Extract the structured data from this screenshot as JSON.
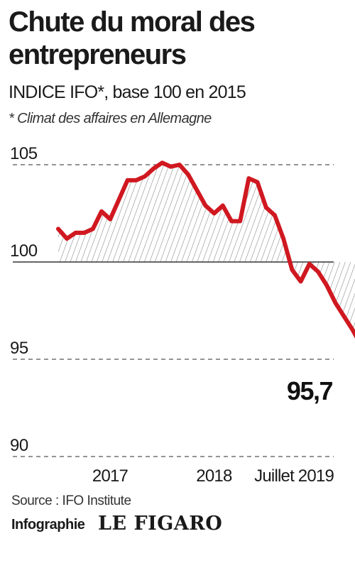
{
  "header": {
    "title": "Chute du moral des entrepreneurs",
    "subtitle": "INDICE IFO*, base 100 en 2015",
    "note": "* Climat des affaires en Allemagne"
  },
  "footer": {
    "source": "Source : IFO Institute",
    "credit": "Infographie",
    "logo": "LE FIGARO"
  },
  "colors": {
    "line": "#d01820",
    "baseline": "#333333",
    "grid": "#555555",
    "hatch": "#777777",
    "text": "#1a1a1a"
  },
  "chart_data": {
    "type": "line",
    "title": "",
    "xlabel": "",
    "ylabel": "",
    "ylim": [
      90,
      105
    ],
    "yticks": [
      {
        "value": 105,
        "label": "105"
      },
      {
        "value": 100,
        "label": "100"
      },
      {
        "value": 95,
        "label": "95"
      },
      {
        "value": 90,
        "label": "90"
      }
    ],
    "xticks": [
      {
        "value": "2017-01",
        "label": "2017"
      },
      {
        "value": "2018-01",
        "label": "2018"
      },
      {
        "value": "2019-07",
        "label": "Juillet 2019"
      }
    ],
    "baseline": 100,
    "fill": "hatched area between line and base 100",
    "series": [
      {
        "points": [
          {
            "x": "2016-08",
            "y": 101.7
          },
          {
            "x": "2016-09",
            "y": 101.2
          },
          {
            "x": "2016-10",
            "y": 101.5
          },
          {
            "x": "2016-11",
            "y": 101.5
          },
          {
            "x": "2016-12",
            "y": 101.7
          },
          {
            "x": "2017-01",
            "y": 102.6
          },
          {
            "x": "2017-02",
            "y": 102.2
          },
          {
            "x": "2017-03",
            "y": 103.2
          },
          {
            "x": "2017-04",
            "y": 104.2
          },
          {
            "x": "2017-05",
            "y": 104.2
          },
          {
            "x": "2017-06",
            "y": 104.4
          },
          {
            "x": "2017-07",
            "y": 104.8
          },
          {
            "x": "2017-08",
            "y": 105.1
          },
          {
            "x": "2017-09",
            "y": 104.9
          },
          {
            "x": "2017-10",
            "y": 105.0
          },
          {
            "x": "2017-11",
            "y": 104.5
          },
          {
            "x": "2017-12",
            "y": 103.7
          },
          {
            "x": "2018-01",
            "y": 102.9
          },
          {
            "x": "2018-02",
            "y": 102.5
          },
          {
            "x": "2018-03",
            "y": 102.9
          },
          {
            "x": "2018-04",
            "y": 102.1
          },
          {
            "x": "2018-05",
            "y": 102.1
          },
          {
            "x": "2018-06",
            "y": 104.3
          },
          {
            "x": "2018-07",
            "y": 104.1
          },
          {
            "x": "2018-08",
            "y": 102.8
          },
          {
            "x": "2018-09",
            "y": 102.4
          },
          {
            "x": "2018-10",
            "y": 101.2
          },
          {
            "x": "2018-11",
            "y": 99.6
          },
          {
            "x": "2018-12",
            "y": 99.0
          },
          {
            "x": "2019-01",
            "y": 99.9
          },
          {
            "x": "2019-02",
            "y": 99.5
          },
          {
            "x": "2019-03",
            "y": 98.8
          },
          {
            "x": "2019-04",
            "y": 97.9
          },
          {
            "x": "2019-05",
            "y": 97.2
          },
          {
            "x": "2019-06",
            "y": 96.5
          },
          {
            "x": "2019-07",
            "y": 95.7
          }
        ]
      }
    ],
    "annotations": [
      {
        "x": "2019-07",
        "y": 95.7,
        "label": "95,7",
        "marker": "square"
      }
    ]
  }
}
